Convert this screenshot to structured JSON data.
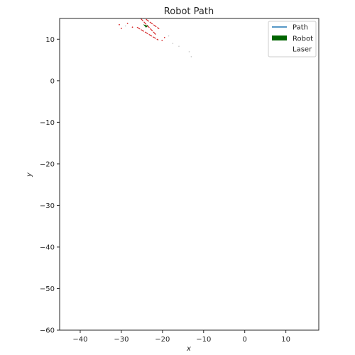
{
  "chart_data": {
    "type": "scatter",
    "title": "Robot Path",
    "xlabel": "x",
    "ylabel": "y",
    "xlim": [
      -45,
      18
    ],
    "ylim": [
      -60,
      15
    ],
    "xticks": [
      -40,
      -30,
      -20,
      -10,
      0,
      10
    ],
    "yticks": [
      10,
      0,
      -10,
      -20,
      -30,
      -40,
      -50,
      -60
    ],
    "xtick_labels": [
      "−40",
      "−30",
      "−20",
      "−10",
      "0",
      "10"
    ],
    "ytick_labels": [
      "10",
      "0",
      "−10",
      "−20",
      "−30",
      "−40",
      "−50",
      "−60"
    ],
    "grid": false,
    "legend_position": "top-right",
    "legend": [
      {
        "label": "Path",
        "kind": "line",
        "color": "#1f77b4"
      },
      {
        "label": "Robot",
        "kind": "patch",
        "color": "#006400"
      },
      {
        "label": "Laser",
        "kind": "none",
        "color": "#ffffff"
      }
    ],
    "robot": {
      "color": "#006400",
      "points": [
        [
          -24.7,
          13.6
        ],
        [
          -24.0,
          12.8
        ],
        [
          -23.5,
          13.2
        ]
      ]
    },
    "laser_segments": {
      "color": "#d62728",
      "segments": [
        [
          [
            -25.3,
            15.0
          ],
          [
            -21.5,
            11.0
          ]
        ],
        [
          [
            -26.2,
            12.9
          ],
          [
            -21.0,
            9.8
          ]
        ],
        [
          [
            -24.0,
            14.8
          ],
          [
            -20.8,
            12.5
          ]
        ]
      ]
    },
    "laser_points": {
      "color": "#d62728",
      "points": [
        [
          -30.5,
          13.5
        ],
        [
          -30.0,
          12.6
        ],
        [
          -28.5,
          13.8
        ],
        [
          -27.3,
          12.9
        ],
        [
          -20.1,
          9.7
        ],
        [
          -19.5,
          10.4
        ]
      ]
    },
    "faint_points": {
      "color": "#c8c8c8",
      "points": [
        [
          -29.0,
          13.2
        ],
        [
          -17.5,
          9.0
        ],
        [
          -16.0,
          8.3
        ],
        [
          -13.5,
          7.0
        ],
        [
          -13.0,
          5.8
        ],
        [
          -18.5,
          10.8
        ]
      ]
    }
  }
}
